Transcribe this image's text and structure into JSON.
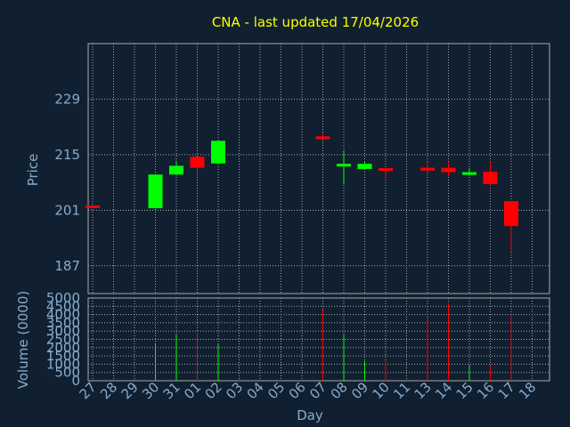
{
  "chart_data": {
    "type": "candlestick",
    "title": "CNA - last updated 17/04/2026",
    "xlabel": "Day",
    "ylabel": "Price",
    "volume_label": "Volume (0000)",
    "x_ticks": [
      "27",
      "28",
      "29",
      "30",
      "31",
      "01",
      "02",
      "03",
      "04",
      "05",
      "06",
      "07",
      "08",
      "09",
      "10",
      "11",
      "13",
      "14",
      "15",
      "16",
      "17",
      "18"
    ],
    "price_ticks": [
      187,
      201,
      215,
      229
    ],
    "price_range": [
      180,
      243
    ],
    "volume_ticks": [
      0,
      500,
      1000,
      1500,
      2000,
      2500,
      3000,
      3500,
      4000,
      4500,
      5000
    ],
    "volume_range": [
      0,
      5000
    ],
    "grid": true,
    "colors": {
      "background": "#102030",
      "up": "#00ff00",
      "down": "#ff0000",
      "title": "#ffff00",
      "text": "#88aacc",
      "axis": "#aaaaaa"
    },
    "candles": [
      {
        "day": "27",
        "open": 202.2,
        "high": 202.2,
        "low": 201.9,
        "close": 201.9,
        "volume": 0
      },
      {
        "day": "30",
        "open": 201.5,
        "high": 210.0,
        "low": 201.5,
        "close": 210.0,
        "volume": 2200
      },
      {
        "day": "31",
        "open": 210.0,
        "high": 213.5,
        "low": 209.8,
        "close": 212.2,
        "volume": 2800
      },
      {
        "day": "01",
        "open": 214.5,
        "high": 214.5,
        "low": 209.5,
        "close": 211.7,
        "volume": 2900
      },
      {
        "day": "02",
        "open": 212.8,
        "high": 218.5,
        "low": 212.5,
        "close": 218.5,
        "volume": 2200
      },
      {
        "day": "07",
        "open": 219.6,
        "high": 220.5,
        "low": 218.8,
        "close": 219.2,
        "volume": 4300
      },
      {
        "day": "08",
        "open": 212.4,
        "high": 216.0,
        "low": 207.5,
        "close": 212.7,
        "volume": 2800
      },
      {
        "day": "09",
        "open": 211.4,
        "high": 213.4,
        "low": 211.2,
        "close": 212.7,
        "volume": 1200
      },
      {
        "day": "10",
        "open": 211.6,
        "high": 211.6,
        "low": 209.0,
        "close": 211.0,
        "volume": 1200
      },
      {
        "day": "13",
        "open": 211.7,
        "high": 213.2,
        "low": 210.8,
        "close": 211.0,
        "volume": 3800
      },
      {
        "day": "14",
        "open": 211.7,
        "high": 213.1,
        "low": 209.6,
        "close": 210.6,
        "volume": 4700
      },
      {
        "day": "15",
        "open": 209.9,
        "high": 211.6,
        "low": 209.8,
        "close": 210.6,
        "volume": 900
      },
      {
        "day": "16",
        "open": 210.7,
        "high": 213.3,
        "low": 207.2,
        "close": 207.6,
        "volume": 900
      },
      {
        "day": "17",
        "open": 203.3,
        "high": 203.3,
        "low": 190.5,
        "close": 197.0,
        "volume": 3900
      }
    ]
  }
}
